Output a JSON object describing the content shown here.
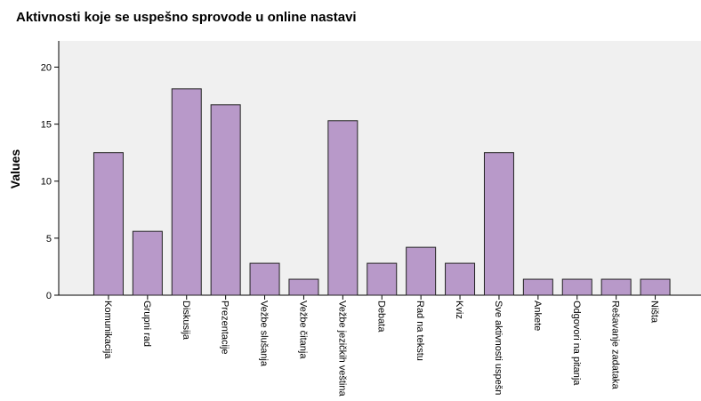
{
  "chart_data": {
    "type": "bar",
    "title": "Aktivnosti koje se uspešno sprovode u online nastavi",
    "y_label": "Values",
    "categories": [
      "Komunikacija",
      "Grupni rad",
      "Diskusija",
      "Prezentacije",
      "Vežbe slušanja",
      "Vežbe čitanja",
      "Vežbe jezičkih veština",
      "Debata",
      "Rad na tekstu",
      "Kviz",
      "Sve aktivnosti uspešn",
      "Ankete",
      "Odgovori na pitanja",
      "Rešavanje zadataka",
      "Ništa"
    ],
    "values": [
      12.5,
      5.6,
      18.1,
      16.7,
      2.8,
      1.4,
      15.3,
      2.8,
      4.2,
      2.8,
      12.5,
      1.4,
      1.4,
      1.4,
      1.4
    ],
    "color": "#b899c9",
    "ylim": [
      0,
      22.3
    ],
    "yticks": [
      0,
      5,
      10,
      15,
      20
    ],
    "grid": false
  }
}
